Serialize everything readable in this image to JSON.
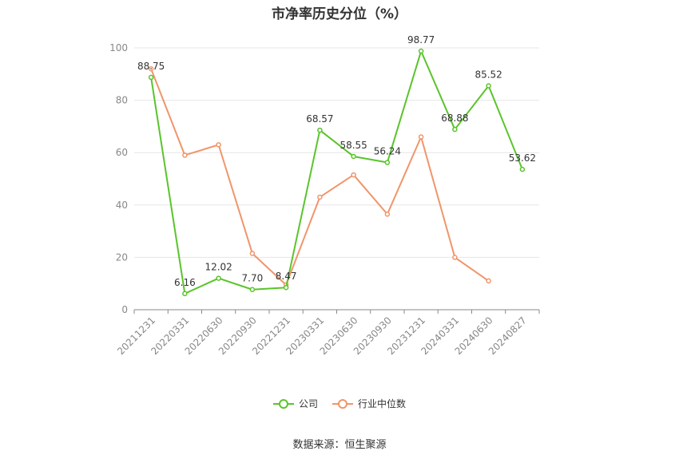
{
  "chart_data": {
    "type": "line",
    "title": "市净率历史分位（%）",
    "categories": [
      "20211231",
      "20220331",
      "20220630",
      "20220930",
      "20221231",
      "20230331",
      "20230630",
      "20230930",
      "20231231",
      "20240331",
      "20240630",
      "20240827"
    ],
    "series": [
      {
        "name": "公司",
        "color": "#5ac42b",
        "values": [
          88.75,
          6.16,
          12.02,
          7.7,
          8.47,
          68.57,
          58.55,
          56.24,
          98.77,
          68.88,
          85.52,
          53.62
        ],
        "labels": [
          "88.75",
          "6.16",
          "12.02",
          "7.70",
          "8.47",
          "68.57",
          "58.55",
          "56.24",
          "98.77",
          "68.88",
          "85.52",
          "53.62"
        ]
      },
      {
        "name": "行业中位数",
        "color": "#f0956a",
        "values": [
          92,
          59,
          63,
          21.5,
          9.5,
          43,
          51.5,
          36.5,
          66,
          20,
          11,
          null
        ]
      }
    ],
    "ylim": [
      0,
      100
    ],
    "yticks": [
      0,
      20,
      40,
      60,
      80,
      100
    ],
    "grid": true,
    "legend_position": "bottom",
    "source": "数据来源：恒生聚源"
  }
}
